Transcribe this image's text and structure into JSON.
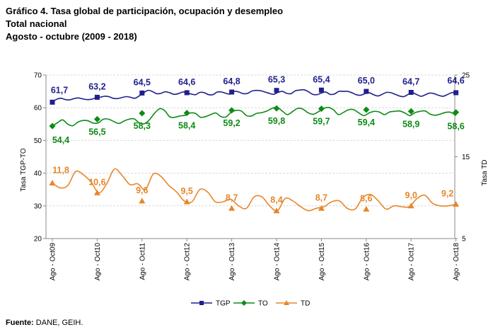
{
  "header": {
    "title": "Gráfico 4. Tasa global de participación, ocupación y desempleo",
    "subtitle": "Total nacional",
    "period": "Agosto - octubre (2009 - 2018)"
  },
  "source": {
    "label": "Fuente:",
    "text": "DANE, GEIH."
  },
  "chart_data": {
    "type": "line",
    "title": "Gráfico 4. Tasa global de participación, ocupación y desempleo",
    "ylabel_left": "Tasa TGP-TO",
    "ylabel_right": "Tasa TD",
    "ylim_left": [
      20,
      70
    ],
    "yticks_left": [
      20,
      30,
      40,
      50,
      60,
      70
    ],
    "ylim_right": [
      5,
      25
    ],
    "yticks_right": [
      5,
      15,
      25
    ],
    "grid": true,
    "categories": [
      "Ago - Oct09",
      "Ago - Oct10",
      "Ago - Oct11",
      "Ago - Oct12",
      "Ago - Oct13",
      "Ago - Oct14",
      "Ago - Oct15",
      "Ago - Oct16",
      "Ago - Oct17",
      "Ago - Oct18"
    ],
    "series": [
      {
        "name": "TGP",
        "color": "#1f1f8c",
        "axis": "left",
        "marker": "square",
        "labels": [
          "61,7",
          "63,2",
          "64,5",
          "64,6",
          "64,8",
          "65,3",
          "65,4",
          "65,0",
          "64,7",
          "64,6"
        ],
        "monthly": [
          61.7,
          62.6,
          62.9,
          62.5,
          62.4,
          62.8,
          63.0,
          62.7,
          62.5,
          62.6,
          63.0,
          63.2,
          63.5,
          63.4,
          62.9,
          62.8,
          63.1,
          63.4,
          63.2,
          62.9,
          63.6,
          64.5,
          65.3,
          65.0,
          64.3,
          64.4,
          64.9,
          64.6,
          64.1,
          64.3,
          64.8,
          64.6,
          64.2,
          64.0,
          64.7,
          64.6,
          64.0,
          64.0,
          64.8,
          64.8,
          64.4,
          64.2,
          65.0,
          64.8,
          64.3,
          64.4,
          65.1,
          65.3,
          65.2,
          64.8,
          64.4,
          64.1,
          64.7,
          65.0,
          64.4,
          64.3,
          65.2,
          65.4,
          65.5,
          64.9,
          64.1,
          64.0,
          64.5,
          64.8,
          64.1,
          64.2,
          65.0,
          65.0,
          65.0,
          64.6,
          64.0,
          63.8,
          64.3,
          64.6,
          64.0,
          63.6,
          64.1,
          64.7,
          64.6,
          64.1,
          63.6,
          63.4,
          64.1,
          64.6,
          64.0,
          63.5,
          64.0,
          64.5,
          64.3,
          63.8,
          63.5,
          64.0,
          64.6,
          64.6
        ]
      },
      {
        "name": "TO",
        "color": "#0e8a16",
        "axis": "left",
        "marker": "diamond",
        "labels": [
          "54,4",
          "56,5",
          "58,3",
          "58,4",
          "59,2",
          "59,8",
          "59,7",
          "59,4",
          "58,9",
          "58,6"
        ],
        "monthly": [
          54.4,
          55.4,
          56.3,
          55.0,
          54.5,
          55.6,
          56.1,
          56.0,
          55.3,
          55.4,
          56.5,
          56.5,
          55.8,
          55.2,
          55.9,
          56.5,
          56.6,
          55.4,
          55.1,
          56.3,
          58.3,
          59.7,
          59.1,
          57.2,
          57.1,
          57.5,
          57.7,
          58.4,
          58.3,
          57.1,
          57.3,
          57.9,
          58.4,
          57.3,
          57.2,
          58.6,
          59.2,
          59.0,
          57.6,
          57.5,
          58.3,
          58.5,
          59.0,
          59.8,
          60.1,
          59.0,
          57.9,
          58.8,
          59.8,
          59.6,
          58.5,
          58.0,
          58.7,
          59.7,
          60.1,
          59.4,
          57.9,
          58.6,
          59.4,
          59.4,
          58.4,
          57.6,
          58.4,
          58.9,
          58.7,
          57.9,
          58.7,
          58.9,
          59.0,
          58.4,
          57.6,
          58.5,
          58.9,
          59.0,
          58.0,
          57.7,
          58.1,
          58.6,
          58.6,
          57.6
        ]
      },
      {
        "name": "TD",
        "color": "#e8862a",
        "axis": "right",
        "marker": "triangle",
        "labels": [
          "11,8",
          "10,6",
          "9,6",
          "9,5",
          "8,7",
          "8,4",
          "8,7",
          "8,6",
          "9,0",
          "9,2"
        ],
        "monthly": [
          11.8,
          11.2,
          11.5,
          13.2,
          12.8,
          11.9,
          10.6,
          11.7,
          13.5,
          12.7,
          11.6,
          11.7,
          11.0,
          12.9,
          12.6,
          11.5,
          10.7,
          9.6,
          9.5,
          11.0,
          10.7,
          9.5,
          9.5,
          9.8,
          9.0,
          8.7,
          10.1,
          10.1,
          9.0,
          8.4,
          9.9,
          9.6,
          8.9,
          8.4,
          8.7,
          8.9,
          9.5,
          9.6,
          8.7,
          8.6,
          10.0,
          10.4,
          9.6,
          8.6,
          9.0,
          8.9,
          8.9,
          9.9,
          10.3,
          9.3,
          9.0,
          9.0,
          9.2
        ]
      }
    ]
  }
}
